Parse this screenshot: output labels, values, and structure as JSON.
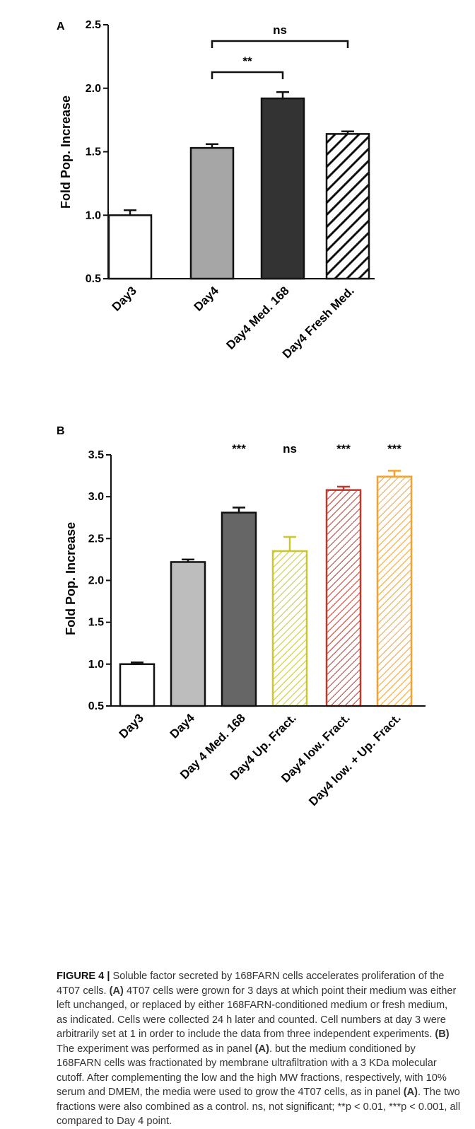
{
  "panels": [
    {
      "label": "A",
      "ylabel": "Fold Pop. Increase",
      "sig_brackets": [
        {
          "text": "ns",
          "from": 1,
          "to": 3
        },
        {
          "text": "**",
          "from": 1,
          "to": 2
        }
      ]
    },
    {
      "label": "B",
      "ylabel": "Fold Pop. Increase",
      "annotations": [
        "***",
        "ns",
        "***",
        "***"
      ]
    }
  ],
  "chart_data": [
    {
      "type": "bar",
      "title": "",
      "xlabel": "",
      "ylabel": "Fold Pop. Increase",
      "ylim": [
        0.5,
        2.5
      ],
      "yticks": [
        "0.5",
        "1.0",
        "1.5",
        "2.0",
        "2.5"
      ],
      "categories": [
        "Day3",
        "Day4",
        "Day4  Med. 168",
        "Day4 Fresh Med."
      ],
      "values": [
        1.0,
        1.53,
        1.92,
        1.64
      ],
      "errors": [
        0.04,
        0.03,
        0.05,
        0.02
      ],
      "fills": [
        "#ffffff",
        "#a6a6a6",
        "#333333",
        "hatch"
      ],
      "strokes": [
        "#111111",
        "#111111",
        "#111111",
        "#111111"
      ],
      "grid": false,
      "legend": "none"
    },
    {
      "type": "bar",
      "title": "",
      "xlabel": "",
      "ylabel": "Fold Pop. Increase",
      "ylim": [
        0.5,
        3.5
      ],
      "yticks": [
        "0.5",
        "1.0",
        "1.5",
        "2.0",
        "2.5",
        "3.0",
        "3.5"
      ],
      "categories": [
        "Day3",
        "Day4",
        "Day 4 Med. 168",
        "Day4  Up. Fract.",
        "Day4  low. Fract.",
        "Day4  low. + Up. Fract."
      ],
      "values": [
        1.0,
        2.22,
        2.81,
        2.35,
        3.08,
        3.24
      ],
      "errors": [
        0.02,
        0.03,
        0.06,
        0.17,
        0.04,
        0.07
      ],
      "fills": [
        "#ffffff",
        "#bdbdbd",
        "#666666",
        "hatch",
        "hatch",
        "hatch"
      ],
      "strokes": [
        "#111111",
        "#111111",
        "#111111",
        "#c9c832",
        "#c0392b",
        "#f5a030"
      ],
      "grid": false,
      "legend": "none"
    }
  ],
  "caption": {
    "label": "FIGURE 4 |",
    "lead": " Soluble factor secreted by 168FARN cells accelerates proliferation of the 4T07 cells. ",
    "a_label": "(A)",
    "a_text": " 4T07 cells were grown for 3 days at which point their medium was either left unchanged, or replaced by either 168FARN-conditioned medium or fresh medium, as indicated. Cells were collected 24 h later and counted. Cell numbers at day 3 were arbitrarily set at 1 in order to include the data from three independent experiments. ",
    "b_label": "(B)",
    "b_text1": " The experiment was performed as in panel ",
    "ref_a1": "(A)",
    "b_text2": ". but the medium conditioned by 168FARN cells was fractionated by membrane ultrafiltration with a 3 KDa molecular cutoff. After complementing the low and the high MW fractions, respectively, with 10% serum and DMEM, the media were used to grow the 4T07 cells, as in panel ",
    "ref_a2": "(A)",
    "b_text3": ". The two fractions were also combined as a control. ns, not significant; **p < 0.01, ***p < 0.001, all compared to Day 4 point."
  }
}
